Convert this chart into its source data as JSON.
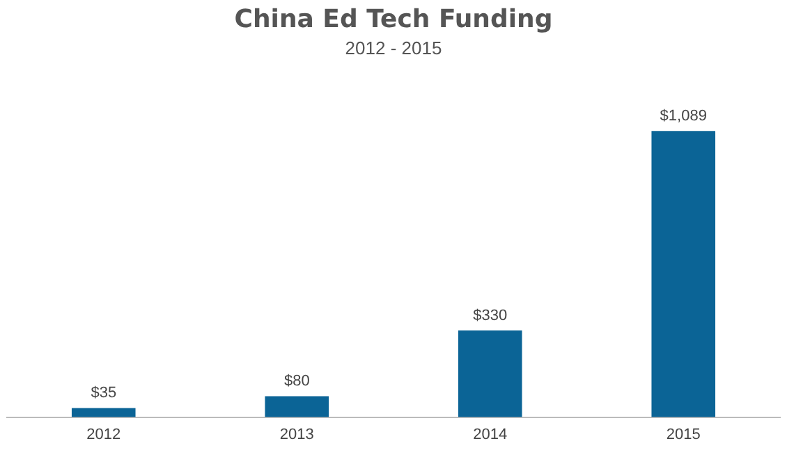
{
  "chart_data": {
    "type": "bar",
    "title": "China Ed Tech Funding",
    "subtitle": "2012 - 2015",
    "categories": [
      "2012",
      "2013",
      "2014",
      "2015"
    ],
    "values": [
      35,
      80,
      330,
      1089
    ],
    "value_labels": [
      "$35",
      "$80",
      "$330",
      "$1,089"
    ],
    "color": "#0b6496",
    "grid": false,
    "legend": false
  }
}
